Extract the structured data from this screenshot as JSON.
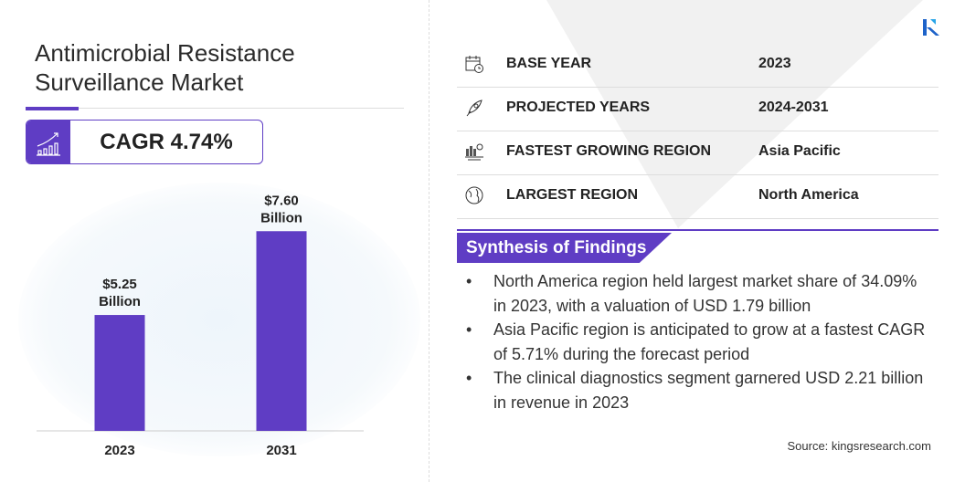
{
  "title_line1": "Antimicrobial Resistance",
  "title_line2": "Surveillance Market",
  "cagr": "CAGR 4.74%",
  "accent_color": "#5f3dc4",
  "chart_data": {
    "type": "bar",
    "categories": [
      "2023",
      "2031"
    ],
    "values": [
      5.25,
      7.6
    ],
    "data_labels": [
      {
        "value": "$5.25",
        "unit": "Billion"
      },
      {
        "value": "$7.60",
        "unit": "Billion"
      }
    ],
    "title": "",
    "xlabel": "",
    "ylabel": "",
    "ylim": [
      2,
      8.4
    ],
    "grid": false,
    "bar_color": "#5f3dc4"
  },
  "table": [
    {
      "icon": "calendar-icon",
      "label": "BASE YEAR",
      "value": "2023"
    },
    {
      "icon": "rocket-icon",
      "label": "PROJECTED YEARS",
      "value": "2024-2031"
    },
    {
      "icon": "growth-region-icon",
      "label": "FASTEST GROWING REGION",
      "value": "Asia Pacific"
    },
    {
      "icon": "globe-icon",
      "label": "LARGEST REGION",
      "value": "North America"
    }
  ],
  "synthesis": {
    "heading": "Synthesis of Findings",
    "bullets": [
      "North America region held largest market share of 34.09% in 2023, with a valuation of USD 1.79 billion",
      "Asia Pacific region is anticipated to grow at a fastest CAGR of 5.71% during the forecast period",
      "The clinical diagnostics segment garnered USD 2.21 billion in revenue in 2023"
    ]
  },
  "source": "Source:  kingsresearch.com",
  "logo_text": "K"
}
